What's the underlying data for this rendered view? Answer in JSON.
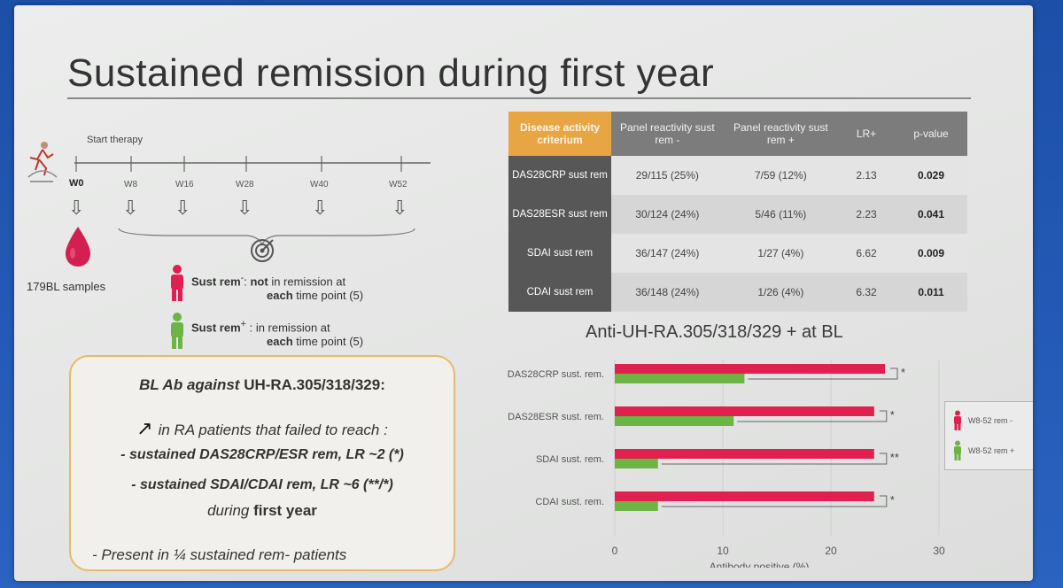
{
  "slide": {
    "title": "Sustained remission during first year"
  },
  "timeline": {
    "start_label": "Start therapy",
    "weeks": [
      "W0",
      "W8",
      "W16",
      "W28",
      "W40",
      "W52"
    ],
    "bl_samples": "179BL samples",
    "sust_rem_minus_label": "Sust rem",
    "sust_rem_minus_sup": "-",
    "sust_rem_minus_text1a": ": ",
    "sust_rem_minus_text1b": "not",
    "sust_rem_minus_text1c": " in remission at",
    "sust_rem_minus_text2a": "each",
    "sust_rem_minus_text2b": " time point (5)",
    "sust_rem_plus_label": "Sust rem",
    "sust_rem_plus_sup": "+",
    "sust_rem_plus_text1": ": in remission at",
    "sust_rem_plus_text2a": "each",
    "sust_rem_plus_text2b": " time point (5)"
  },
  "table": {
    "headers": [
      "Disease activity criterium",
      "Panel reactivity sust rem -",
      "Panel reactivity sust rem +",
      "LR+",
      "p-value"
    ],
    "rows": [
      {
        "criterion": "DAS28CRP sust rem",
        "minus": "29/115 (25%)",
        "plus": "7/59 (12%)",
        "lr": "2.13",
        "p": "0.029"
      },
      {
        "criterion": "DAS28ESR sust rem",
        "minus": "30/124 (24%)",
        "plus": "5/46 (11%)",
        "lr": "2.23",
        "p": "0.041"
      },
      {
        "criterion": "SDAI sust rem",
        "minus": "36/147 (24%)",
        "plus": "1/27 (4%)",
        "lr": "6.62",
        "p": "0.009"
      },
      {
        "criterion": "CDAI sust rem",
        "minus": "36/148 (24%)",
        "plus": "1/26 (4%)",
        "lr": "6.32",
        "p": "0.011"
      }
    ]
  },
  "callout": {
    "line1a": "BL Ab against ",
    "line1b": "UH-RA.305/318/329:",
    "line2": "in RA patients that failed to reach :",
    "line3": "- sustained DAS28CRP/ESR rem, LR ~2 (*)",
    "line4": "- sustained SDAI/CDAI rem, LR ~6 (**/*)",
    "line5a": "during ",
    "line5b": "first year",
    "line6": "- Present in ¼ sustained rem- patients"
  },
  "colors": {
    "rem_minus": "#e0204f",
    "rem_plus": "#6cb544",
    "orange": "#e8a544",
    "dark_row": "#585758"
  },
  "chart_data": {
    "type": "bar",
    "title": "Anti-UH-RA.305/318/329 + at BL",
    "xlabel": "Antibody positive (%)",
    "ylabel": "",
    "orientation": "horizontal",
    "categories": [
      "DAS28CRP sust. rem.",
      "DAS28ESR sust. rem.",
      "SDAI sust. rem.",
      "CDAI sust. rem."
    ],
    "series": [
      {
        "name": "W8-52 rem -",
        "values": [
          25,
          24,
          24,
          24
        ]
      },
      {
        "name": "W8-52 rem +",
        "values": [
          12,
          11,
          4,
          4
        ]
      }
    ],
    "significance": [
      "*",
      "*",
      "**",
      "*"
    ],
    "xlim": [
      0,
      30
    ],
    "xticks": [
      0,
      10,
      20,
      30
    ],
    "legend_position": "right"
  }
}
